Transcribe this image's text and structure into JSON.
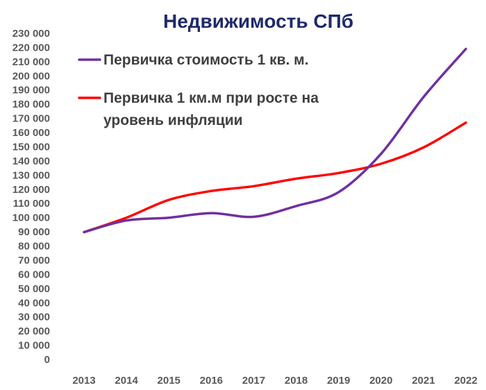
{
  "chart_data": {
    "type": "line",
    "title": "Недвижимость СПб",
    "xlabel": "",
    "ylabel": "",
    "categories": [
      "2013",
      "2014",
      "2015",
      "2016",
      "2017",
      "2018",
      "2019",
      "2020",
      "2021",
      "2022"
    ],
    "ylim": [
      0,
      230000
    ],
    "ytick_labels": [
      "0",
      "10 000",
      "20 000",
      "30 000",
      "40 000",
      "50 000",
      "60 000",
      "70 000",
      "80 000",
      "90 000",
      "100 000",
      "110 000",
      "120 000",
      "130 000",
      "140 000",
      "150 000",
      "160 000",
      "170 000",
      "180 000",
      "190 000",
      "200 000",
      "210 000",
      "220 000",
      "230 000"
    ],
    "ytick_values": [
      0,
      10000,
      20000,
      30000,
      40000,
      50000,
      60000,
      70000,
      80000,
      90000,
      100000,
      110000,
      120000,
      130000,
      140000,
      150000,
      160000,
      170000,
      180000,
      190000,
      200000,
      210000,
      220000,
      230000
    ],
    "grid": false,
    "legend_position": "top-left",
    "series": [
      {
        "name": "Первичка стоимость 1 кв. м.",
        "legend_lines": [
          "Первичка стоимость 1 кв. м."
        ],
        "color": "#7030a0",
        "values": [
          89800,
          98000,
          100000,
          103200,
          100600,
          108200,
          118000,
          145000,
          185000,
          219000
        ]
      },
      {
        "name": "Первичка 1 км.м при росте на уровень инфляции",
        "legend_lines": [
          "Первичка 1 км.м при росте на",
          "уровень инфляции"
        ],
        "color": "#ff0000",
        "values": [
          89800,
          100000,
          112500,
          118800,
          122200,
          127500,
          131500,
          138000,
          149500,
          167000
        ]
      }
    ]
  }
}
